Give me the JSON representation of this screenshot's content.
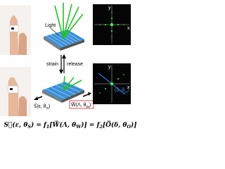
{
  "top": {
    "light_label": "Light",
    "pattern": {
      "x_label": "x",
      "y_label": "y"
    }
  },
  "middle": {
    "strain": "strain",
    "release": "release"
  },
  "bottom": {
    "pattern": {
      "x_label": "x",
      "y_label": "y",
      "angle_label": [
        {
          "text": "(δ, θ"
        },
        {
          "sub": "O"
        },
        {
          "text": ")"
        }
      ]
    },
    "strain_label": [
      {
        "text": "S⃗(ε, θ"
      },
      {
        "sub": "S"
      },
      {
        "text": ")"
      }
    ],
    "grating_label": [
      {
        "text": "W̅(Λ, θ"
      },
      {
        "sub": "W"
      },
      {
        "text": ")"
      }
    ]
  },
  "equation": [
    {
      "text": "S⃗(ε, θ"
    },
    {
      "sub": "S"
    },
    {
      "text": ") = f"
    },
    {
      "sub": "1"
    },
    {
      "text": "[W̅(Λ, θ"
    },
    {
      "sub": "W"
    },
    {
      "text": ")] = f"
    },
    {
      "sub": "2"
    },
    {
      "text": "[O̅(δ, θ"
    },
    {
      "sub": "O"
    },
    {
      "text": ")]"
    }
  ]
}
